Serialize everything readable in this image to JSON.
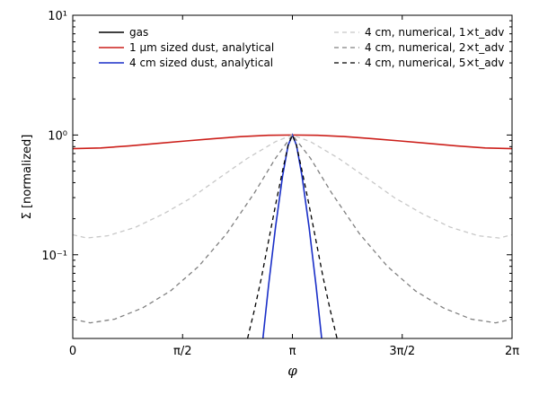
{
  "chart_data": {
    "type": "line",
    "title": "",
    "xlabel": "φ",
    "ylabel": "Σ [normalized]",
    "xlim": [
      0,
      6.2832
    ],
    "ylim": [
      0.02,
      10
    ],
    "yscale": "log",
    "grid": false,
    "legend_placement": "top",
    "x_ticks": [
      {
        "value": 0,
        "label": "0"
      },
      {
        "value": 1.5708,
        "label": "π/2"
      },
      {
        "value": 3.1416,
        "label": "π"
      },
      {
        "value": 4.7124,
        "label": "3π/2"
      },
      {
        "value": 6.2832,
        "label": "2π"
      }
    ],
    "y_ticks": [
      {
        "value": 0.1,
        "label": "10⁻¹"
      },
      {
        "value": 1,
        "label": "10⁰"
      },
      {
        "value": 10,
        "label": "10¹"
      }
    ],
    "series": [
      {
        "name": "gas",
        "color": "#000000",
        "dash": "solid",
        "x": [],
        "y": []
      },
      {
        "name": "1 μm sized dust, analytical",
        "color": "#cc1f1a",
        "dash": "solid",
        "x": [
          0,
          0.4,
          0.8,
          1.2,
          1.6,
          2.0,
          2.4,
          2.8,
          3.1416,
          3.5,
          3.9,
          4.3,
          4.7,
          5.1,
          5.5,
          5.9,
          6.2832
        ],
        "y": [
          0.77,
          0.78,
          0.81,
          0.85,
          0.89,
          0.93,
          0.97,
          0.995,
          1.0,
          0.995,
          0.97,
          0.93,
          0.89,
          0.85,
          0.81,
          0.78,
          0.77
        ]
      },
      {
        "name": "4 cm sized dust, analytical",
        "color": "#1a2fc8",
        "dash": "solid",
        "x": [
          2.72,
          2.8,
          2.9,
          3.0,
          3.08,
          3.1416,
          3.2,
          3.28,
          3.38,
          3.48,
          3.56
        ],
        "y": [
          0.02,
          0.055,
          0.17,
          0.45,
          0.82,
          1.0,
          0.82,
          0.45,
          0.17,
          0.055,
          0.02
        ]
      },
      {
        "name": "4 cm, numerical, 1×t_adv",
        "color": "#c8c8c8",
        "dash": "dashed",
        "x": [
          0,
          0.2,
          0.5,
          0.9,
          1.3,
          1.7,
          2.1,
          2.5,
          2.9,
          3.1416,
          3.4,
          3.8,
          4.2,
          4.6,
          5.0,
          5.4,
          5.8,
          6.1,
          6.2832
        ],
        "y": [
          0.147,
          0.138,
          0.144,
          0.17,
          0.22,
          0.3,
          0.44,
          0.64,
          0.88,
          1.0,
          0.88,
          0.64,
          0.44,
          0.3,
          0.22,
          0.17,
          0.144,
          0.138,
          0.147
        ]
      },
      {
        "name": "4 cm, numerical, 2×t_adv",
        "color": "#808080",
        "dash": "dashed",
        "x": [
          0,
          0.25,
          0.6,
          1.0,
          1.4,
          1.8,
          2.2,
          2.6,
          2.9,
          3.1416,
          3.4,
          3.7,
          4.1,
          4.5,
          4.9,
          5.3,
          5.7,
          6.05,
          6.2832
        ],
        "y": [
          0.029,
          0.027,
          0.029,
          0.036,
          0.05,
          0.08,
          0.15,
          0.33,
          0.64,
          1.0,
          0.64,
          0.33,
          0.15,
          0.08,
          0.05,
          0.036,
          0.029,
          0.027,
          0.029
        ]
      },
      {
        "name": "4 cm, numerical, 5×t_adv",
        "color": "#000000",
        "dash": "dashed",
        "x": [
          2.5,
          2.6,
          2.7,
          2.8,
          2.9,
          3.0,
          3.08,
          3.1416,
          3.2,
          3.28,
          3.38,
          3.48,
          3.58,
          3.68,
          3.78
        ],
        "y": [
          0.02,
          0.035,
          0.065,
          0.13,
          0.26,
          0.5,
          0.82,
          1.0,
          0.82,
          0.5,
          0.26,
          0.13,
          0.065,
          0.035,
          0.02
        ]
      }
    ]
  }
}
